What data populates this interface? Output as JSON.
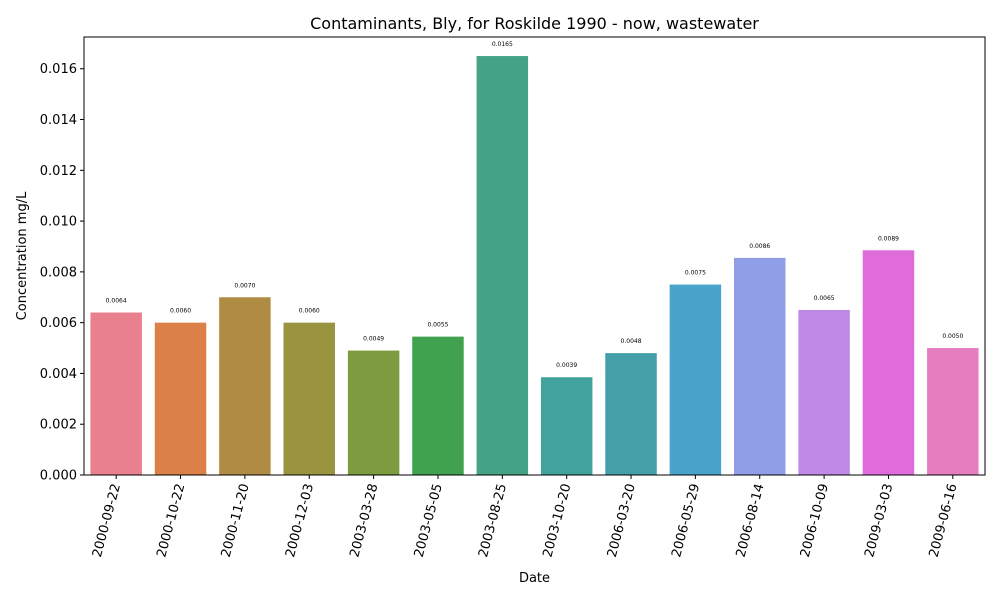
{
  "chart_data": {
    "type": "bar",
    "title": "Contaminants, Bly, for Roskilde 1990 - now, wastewater",
    "xlabel": "Date",
    "ylabel": "Concentration mg/L",
    "ylim": [
      0,
      0.01725
    ],
    "yticks": [
      "0.000",
      "0.002",
      "0.004",
      "0.006",
      "0.008",
      "0.010",
      "0.012",
      "0.014",
      "0.016"
    ],
    "ytick_values": [
      0,
      0.002,
      0.004,
      0.006,
      0.008,
      0.01,
      0.012,
      0.014,
      0.016
    ],
    "categories": [
      "2000-09-22",
      "2000-10-22",
      "2000-11-20",
      "2000-12-03",
      "2003-03-28",
      "2003-05-05",
      "2003-08-25",
      "2003-10-20",
      "2006-03-20",
      "2006-05-29",
      "2006-08-14",
      "2006-10-09",
      "2009-03-03",
      "2009-06-16"
    ],
    "values": [
      0.0064,
      0.006,
      0.007,
      0.006,
      0.0049,
      0.00545,
      0.0165,
      0.00385,
      0.0048,
      0.0075,
      0.00855,
      0.0065,
      0.00885,
      0.005
    ],
    "value_labels": [
      "0.0064",
      "0.0060",
      "0.0070",
      "0.0060",
      "0.0049",
      "0.0055",
      "0.0165",
      "0.0039",
      "0.0048",
      "0.0075",
      "0.0086",
      "0.0065",
      "0.0089",
      "0.0050"
    ],
    "colors": [
      "#e8808e",
      "#db8046",
      "#b08b43",
      "#9a9441",
      "#7d9c40",
      "#40a24f",
      "#44a386",
      "#42a29e",
      "#459fa9",
      "#4aa3cb",
      "#8f9ee6",
      "#bf8ae6",
      "#e06cdc",
      "#e47ebe"
    ],
    "grid": false,
    "legend": "none"
  }
}
